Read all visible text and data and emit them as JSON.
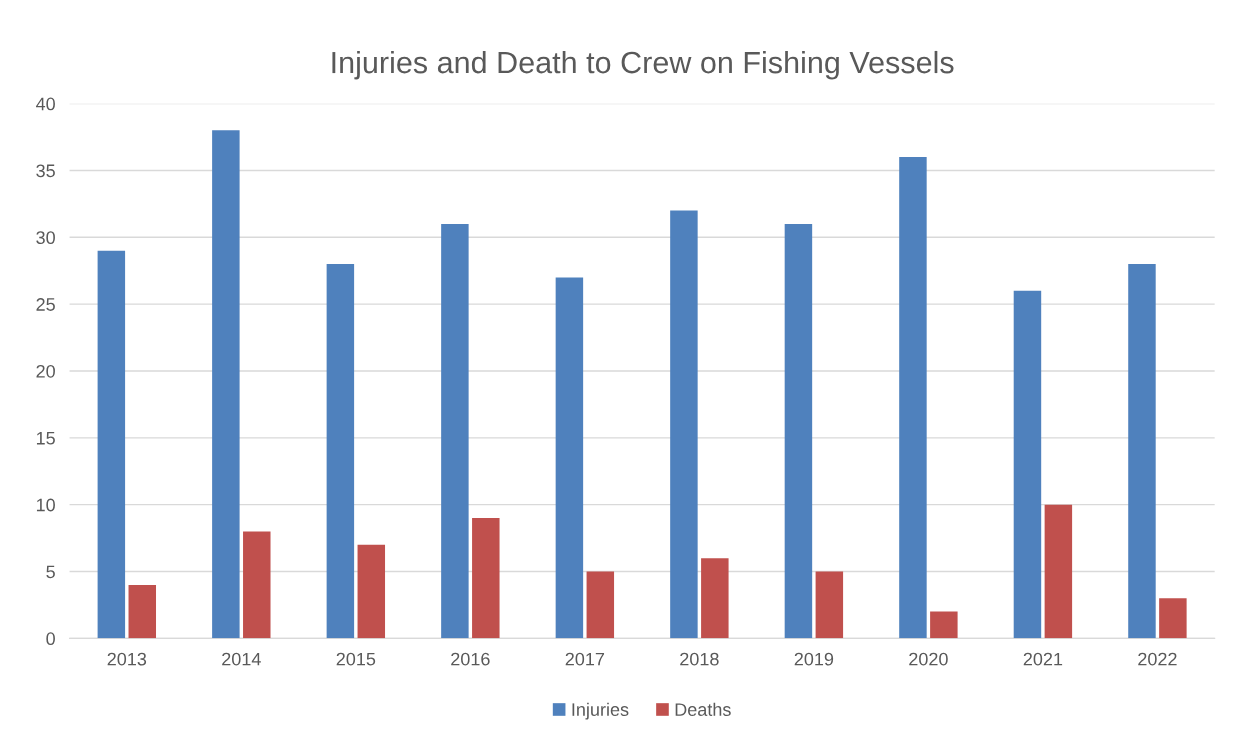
{
  "chart_data": {
    "type": "bar",
    "title": "Injuries and Death to Crew on Fishing Vessels",
    "categories": [
      "2013",
      "2014",
      "2015",
      "2016",
      "2017",
      "2018",
      "2019",
      "2020",
      "2021",
      "2022"
    ],
    "series": [
      {
        "name": "Injuries",
        "color": "#4f81bd",
        "values": [
          29,
          38,
          28,
          31,
          27,
          32,
          31,
          36,
          26,
          28
        ]
      },
      {
        "name": "Deaths",
        "color": "#c0504d",
        "values": [
          4,
          8,
          7,
          9,
          5,
          6,
          5,
          2,
          10,
          3
        ]
      }
    ],
    "ylim": [
      0,
      40
    ],
    "yticks": [
      0,
      5,
      10,
      15,
      20,
      25,
      30,
      35,
      40
    ],
    "grid": "y",
    "legend": "bottom"
  }
}
